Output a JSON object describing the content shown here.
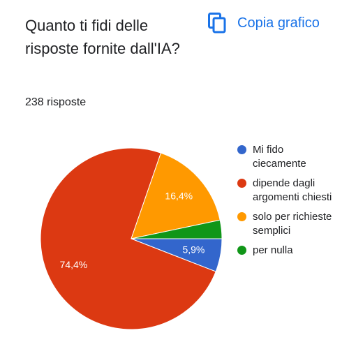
{
  "button_label": "Copia grafico",
  "chart_data": {
    "type": "pie",
    "title": "Quanto ti fidi delle risposte fornite dall'IA?",
    "subtitle": "238 risposte",
    "categories": [
      "Mi fido ciecamente",
      "dipende dagli argomenti chiesti",
      "solo per richieste semplici",
      "per nulla"
    ],
    "values": [
      5.9,
      74.4,
      16.4,
      3.3
    ],
    "value_labels": [
      "5,9%",
      "74,4%",
      "16,4%",
      null
    ],
    "colors": [
      "#3366cc",
      "#dc3912",
      "#ff9900",
      "#109618"
    ],
    "legend": "right"
  }
}
